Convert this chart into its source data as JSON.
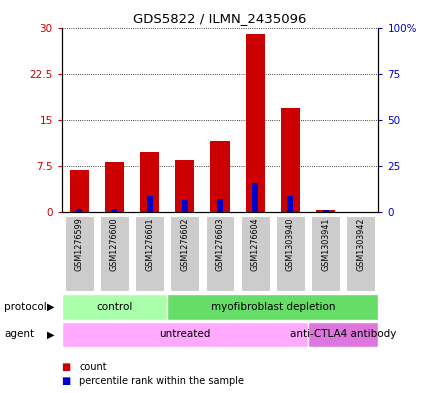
{
  "title": "GDS5822 / ILMN_2435096",
  "samples": [
    "GSM1276599",
    "GSM1276600",
    "GSM1276601",
    "GSM1276602",
    "GSM1276603",
    "GSM1276604",
    "GSM1303940",
    "GSM1303941",
    "GSM1303942"
  ],
  "counts": [
    6.8,
    8.2,
    9.8,
    8.5,
    11.5,
    29.0,
    17.0,
    0.4,
    0.0
  ],
  "percentile_ranks": [
    2.0,
    1.5,
    9.0,
    6.5,
    7.0,
    16.0,
    9.0,
    1.0,
    0.0
  ],
  "bar_color": "#cc0000",
  "blue_color": "#0000cc",
  "ylim_left": [
    0,
    30
  ],
  "ylim_right": [
    0,
    100
  ],
  "yticks_left": [
    0,
    7.5,
    15,
    22.5,
    30
  ],
  "yticks_right": [
    0,
    25,
    50,
    75,
    100
  ],
  "ytick_labels_left": [
    "0",
    "7.5",
    "15",
    "22.5",
    "30"
  ],
  "ytick_labels_right": [
    "0",
    "25",
    "50",
    "75",
    "100%"
  ],
  "protocol_labels": [
    {
      "text": "control",
      "start": 0,
      "end": 3,
      "color": "#aaffaa"
    },
    {
      "text": "myofibroblast depletion",
      "start": 3,
      "end": 9,
      "color": "#66dd66"
    }
  ],
  "agent_labels": [
    {
      "text": "untreated",
      "start": 0,
      "end": 7,
      "color": "#ffaaff"
    },
    {
      "text": "anti-CTLA4 antibody",
      "start": 7,
      "end": 9,
      "color": "#dd77dd"
    }
  ],
  "legend_count_color": "#cc0000",
  "legend_pct_color": "#0000cc",
  "plot_bg": "#ffffff",
  "gray_box": "#cccccc"
}
